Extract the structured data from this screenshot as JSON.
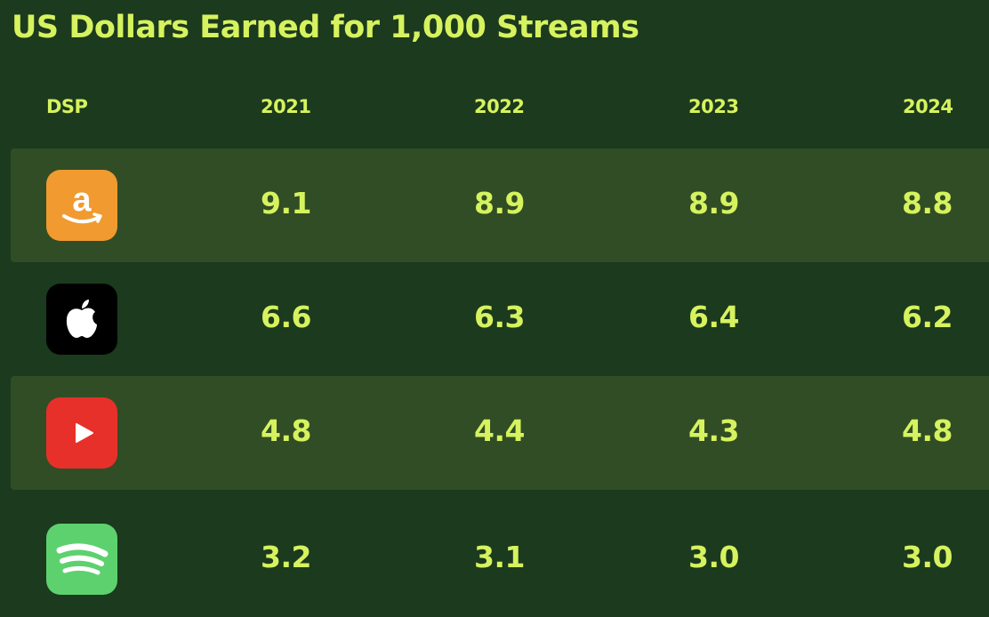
{
  "title": "US Dollars Earned for 1,000 Streams",
  "colors": {
    "background": "#1c3a1e",
    "row_shade": "#314d25",
    "text": "#d6f25e",
    "amazon": "#f09a30",
    "apple": "#000000",
    "youtube": "#e8302a",
    "spotify": "#5ed16f"
  },
  "chart_data": {
    "type": "table",
    "columns": [
      "DSP",
      "2021",
      "2022",
      "2023",
      "2024"
    ],
    "rows": [
      {
        "dsp_icon": "amazon-music-icon",
        "values": [
          "9.1",
          "8.9",
          "8.9",
          "8.8"
        ]
      },
      {
        "dsp_icon": "apple-music-icon",
        "values": [
          "6.6",
          "6.3",
          "6.4",
          "6.2"
        ]
      },
      {
        "dsp_icon": "youtube-music-icon",
        "values": [
          "4.8",
          "4.4",
          "4.3",
          "4.8"
        ]
      },
      {
        "dsp_icon": "spotify-icon",
        "values": [
          "3.2",
          "3.1",
          "3.0",
          "3.0"
        ]
      }
    ]
  }
}
